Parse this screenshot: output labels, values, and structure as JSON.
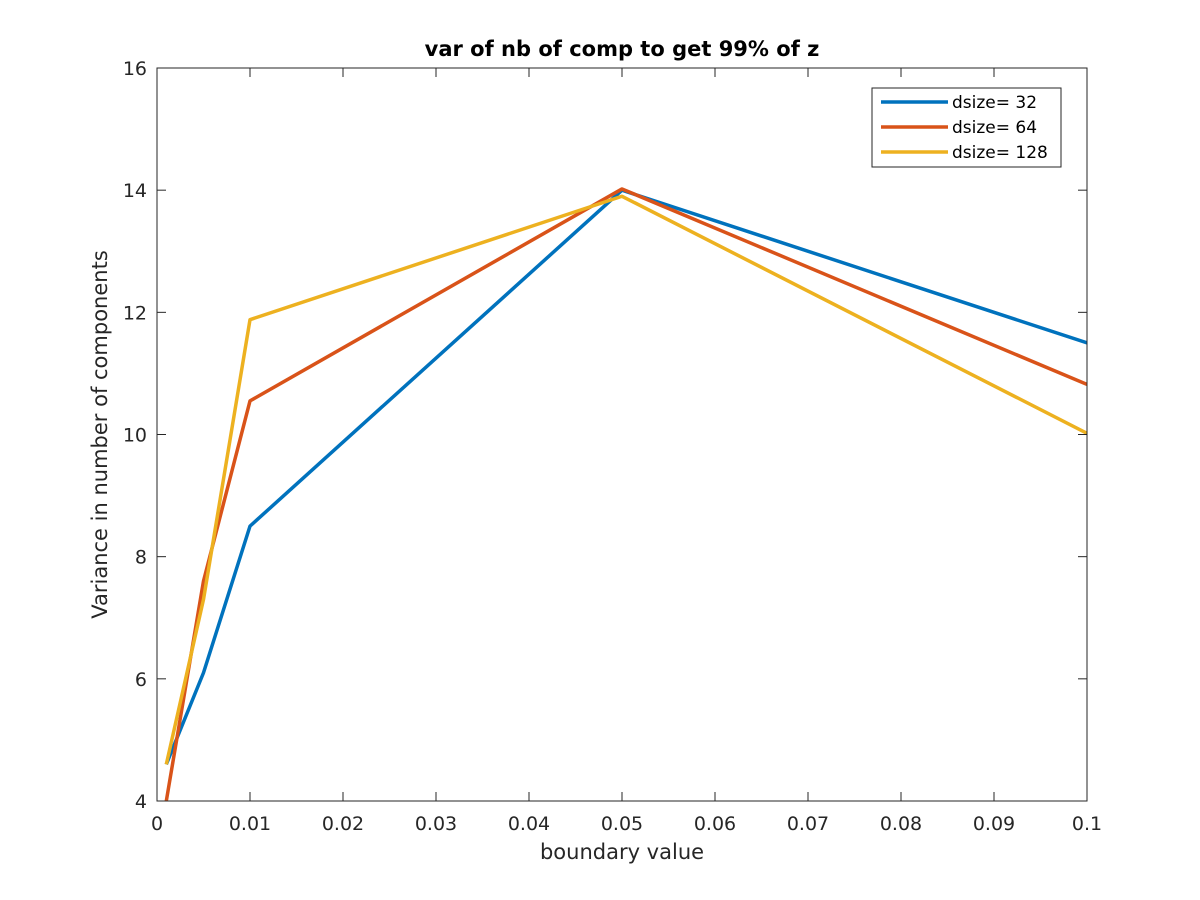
{
  "chart_data": {
    "type": "line",
    "title": "var of nb of comp to get 99% of z",
    "xlabel": "boundary value",
    "ylabel": "Variance in number of components",
    "xlim": [
      0,
      0.1
    ],
    "ylim": [
      4,
      16
    ],
    "xticks": [
      0,
      0.01,
      0.02,
      0.03,
      0.04,
      0.05,
      0.06,
      0.07,
      0.08,
      0.09,
      0.1
    ],
    "xtick_labels": [
      "0",
      "0.01",
      "0.02",
      "0.03",
      "0.04",
      "0.05",
      "0.06",
      "0.07",
      "0.08",
      "0.09",
      "0.1"
    ],
    "yticks": [
      4,
      6,
      8,
      10,
      12,
      14,
      16
    ],
    "ytick_labels": [
      "4",
      "6",
      "8",
      "10",
      "12",
      "14",
      "16"
    ],
    "grid": false,
    "legend_position": "top-right",
    "series": [
      {
        "name": "dsize= 32",
        "color": "#0072BD",
        "x": [
          0.001,
          0.005,
          0.01,
          0.05,
          0.1
        ],
        "y": [
          4.6,
          6.1,
          8.5,
          14.0,
          11.5
        ]
      },
      {
        "name": "dsize= 64",
        "color": "#D95319",
        "x": [
          0.001,
          0.005,
          0.01,
          0.05,
          0.1
        ],
        "y": [
          4.0,
          7.6,
          10.55,
          14.02,
          10.82
        ]
      },
      {
        "name": "dsize= 128",
        "color": "#EDB120",
        "x": [
          0.001,
          0.005,
          0.01,
          0.05,
          0.1
        ],
        "y": [
          4.6,
          7.3,
          11.88,
          13.9,
          10.02
        ]
      }
    ]
  }
}
